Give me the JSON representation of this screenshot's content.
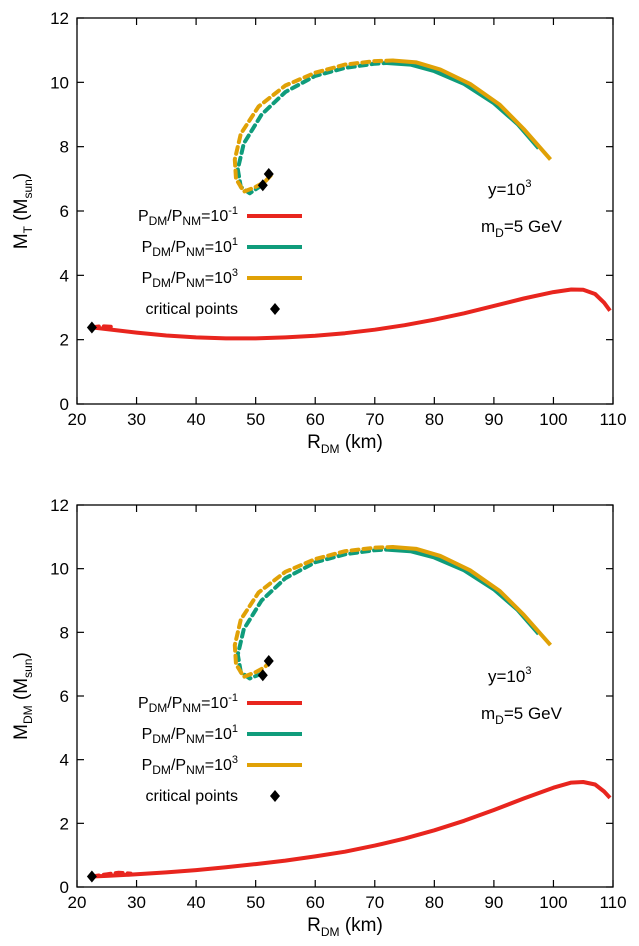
{
  "colors": {
    "red": "#e8251e",
    "green": "#0f9c7b",
    "orange": "#e0a106",
    "marker": "#000000"
  },
  "chart_data": [
    {
      "type": "line",
      "xlabel": {
        "main": "R",
        "sub": "DM",
        "rest": " (km)"
      },
      "ylabel": {
        "main": "M",
        "sub": "T",
        "rest": " (M",
        "sub2": "sun",
        "end": ")"
      },
      "xlim": [
        20,
        110
      ],
      "ylim": [
        0,
        12
      ],
      "xticks": [
        "20",
        "30",
        "40",
        "50",
        "60",
        "70",
        "80",
        "90",
        "100",
        "110"
      ],
      "yticks": [
        "0",
        "2",
        "4",
        "6",
        "8",
        "10",
        "12"
      ],
      "grid": false,
      "legend_position": "middle-left",
      "legend": [
        {
          "base": "P",
          "s1": "DM",
          "mid": "/P",
          "s2": "NM",
          "eq": "=10",
          "exp": "-1"
        },
        {
          "base": "P",
          "s1": "DM",
          "mid": "/P",
          "s2": "NM",
          "eq": "=10",
          "exp": "1"
        },
        {
          "base": "P",
          "s1": "DM",
          "mid": "/P",
          "s2": "NM",
          "eq": "=10",
          "exp": "3"
        },
        {
          "text": "critical points"
        }
      ],
      "annotations": [
        {
          "base": "y=10",
          "exp": "3"
        },
        {
          "base": "m",
          "sub": "D",
          "rest": "=5 GeV"
        }
      ],
      "series": [
        {
          "name_ref": 0,
          "color_key": "red",
          "stable": [
            [
              22.5,
              2.38
            ],
            [
              25,
              2.33
            ],
            [
              30,
              2.22
            ],
            [
              35,
              2.13
            ],
            [
              40,
              2.07
            ],
            [
              45,
              2.04
            ],
            [
              50,
              2.04
            ],
            [
              55,
              2.07
            ],
            [
              60,
              2.12
            ],
            [
              65,
              2.2
            ],
            [
              70,
              2.31
            ],
            [
              75,
              2.45
            ],
            [
              80,
              2.62
            ],
            [
              85,
              2.82
            ],
            [
              90,
              3.05
            ],
            [
              95,
              3.28
            ],
            [
              100,
              3.48
            ],
            [
              103,
              3.56
            ],
            [
              105,
              3.55
            ],
            [
              107,
              3.42
            ],
            [
              108.5,
              3.15
            ],
            [
              109.5,
              2.9
            ]
          ],
          "unstable": [
            [
              22.5,
              2.38
            ],
            [
              24,
              2.42
            ],
            [
              26,
              2.4
            ]
          ]
        },
        {
          "name_ref": 1,
          "color_key": "green",
          "stable": [
            [
              72,
              10.6
            ],
            [
              76,
              10.55
            ],
            [
              80,
              10.35
            ],
            [
              85,
              9.95
            ],
            [
              90,
              9.35
            ],
            [
              94,
              8.7
            ],
            [
              97.5,
              7.95
            ]
          ],
          "unstable": [
            [
              51,
              6.8
            ],
            [
              49,
              6.55
            ],
            [
              47.5,
              6.75
            ],
            [
              47,
              7.3
            ],
            [
              48,
              8.1
            ],
            [
              51,
              9.0
            ],
            [
              55,
              9.7
            ],
            [
              60,
              10.2
            ],
            [
              65,
              10.45
            ],
            [
              70,
              10.58
            ],
            [
              72,
              10.6
            ]
          ]
        },
        {
          "name_ref": 2,
          "color_key": "orange",
          "stable": [
            [
              73,
              10.68
            ],
            [
              77,
              10.62
            ],
            [
              81,
              10.4
            ],
            [
              86,
              9.95
            ],
            [
              91,
              9.3
            ],
            [
              95,
              8.55
            ],
            [
              99.5,
              7.6
            ]
          ],
          "unstable": [
            [
              52.5,
              7.1
            ],
            [
              51.5,
              6.9
            ],
            [
              50,
              6.75
            ],
            [
              48,
              6.6
            ],
            [
              46.7,
              7.0
            ],
            [
              46.5,
              7.6
            ],
            [
              47.5,
              8.4
            ],
            [
              50.5,
              9.25
            ],
            [
              55,
              9.9
            ],
            [
              60,
              10.3
            ],
            [
              65,
              10.55
            ],
            [
              70,
              10.66
            ],
            [
              73,
              10.68
            ]
          ]
        }
      ],
      "critical_points": [
        [
          22.5,
          2.38
        ],
        [
          51.2,
          6.8
        ],
        [
          52.2,
          7.15
        ]
      ]
    },
    {
      "type": "line",
      "xlabel": {
        "main": "R",
        "sub": "DM",
        "rest": " (km)"
      },
      "ylabel": {
        "main": "M",
        "sub": "DM",
        "rest": " (M",
        "sub2": "sun",
        "end": ")"
      },
      "xlim": [
        20,
        110
      ],
      "ylim": [
        0,
        12
      ],
      "xticks": [
        "20",
        "30",
        "40",
        "50",
        "60",
        "70",
        "80",
        "90",
        "100",
        "110"
      ],
      "yticks": [
        "0",
        "2",
        "4",
        "6",
        "8",
        "10",
        "12"
      ],
      "grid": false,
      "legend_position": "middle-left",
      "legend": [
        {
          "base": "P",
          "s1": "DM",
          "mid": "/P",
          "s2": "NM",
          "eq": "=10",
          "exp": "-1"
        },
        {
          "base": "P",
          "s1": "DM",
          "mid": "/P",
          "s2": "NM",
          "eq": "=10",
          "exp": "1"
        },
        {
          "base": "P",
          "s1": "DM",
          "mid": "/P",
          "s2": "NM",
          "eq": "=10",
          "exp": "3"
        },
        {
          "text": "critical points"
        }
      ],
      "annotations": [
        {
          "base": "y=10",
          "exp": "3"
        },
        {
          "base": "m",
          "sub": "D",
          "rest": "=5 GeV"
        }
      ],
      "series": [
        {
          "name_ref": 0,
          "color_key": "red",
          "stable": [
            [
              22.5,
              0.33
            ],
            [
              25,
              0.35
            ],
            [
              30,
              0.4
            ],
            [
              35,
              0.46
            ],
            [
              40,
              0.53
            ],
            [
              45,
              0.62
            ],
            [
              50,
              0.72
            ],
            [
              55,
              0.83
            ],
            [
              60,
              0.96
            ],
            [
              65,
              1.11
            ],
            [
              70,
              1.3
            ],
            [
              75,
              1.52
            ],
            [
              80,
              1.78
            ],
            [
              85,
              2.08
            ],
            [
              90,
              2.42
            ],
            [
              95,
              2.78
            ],
            [
              100,
              3.12
            ],
            [
              103,
              3.28
            ],
            [
              105,
              3.3
            ],
            [
              107,
              3.22
            ],
            [
              108.5,
              3.0
            ],
            [
              109.5,
              2.8
            ]
          ],
          "unstable": [
            [
              22.5,
              0.33
            ],
            [
              25,
              0.4
            ],
            [
              27,
              0.45
            ],
            [
              29,
              0.42
            ]
          ]
        },
        {
          "name_ref": 1,
          "color_key": "green",
          "stable": [
            [
              72,
              10.6
            ],
            [
              76,
              10.55
            ],
            [
              80,
              10.35
            ],
            [
              85,
              9.95
            ],
            [
              90,
              9.35
            ],
            [
              94,
              8.7
            ],
            [
              97.5,
              7.95
            ]
          ],
          "unstable": [
            [
              51,
              6.7
            ],
            [
              49,
              6.55
            ],
            [
              47.5,
              6.75
            ],
            [
              47,
              7.3
            ],
            [
              48,
              8.1
            ],
            [
              51,
              9.0
            ],
            [
              55,
              9.7
            ],
            [
              60,
              10.2
            ],
            [
              65,
              10.45
            ],
            [
              70,
              10.58
            ],
            [
              72,
              10.6
            ]
          ]
        },
        {
          "name_ref": 2,
          "color_key": "orange",
          "stable": [
            [
              73,
              10.68
            ],
            [
              77,
              10.62
            ],
            [
              81,
              10.4
            ],
            [
              86,
              9.95
            ],
            [
              91,
              9.3
            ],
            [
              95,
              8.55
            ],
            [
              99.5,
              7.6
            ]
          ],
          "unstable": [
            [
              52.5,
              7.1
            ],
            [
              51.5,
              6.9
            ],
            [
              50,
              6.75
            ],
            [
              48,
              6.6
            ],
            [
              46.7,
              7.0
            ],
            [
              46.5,
              7.6
            ],
            [
              47.5,
              8.4
            ],
            [
              50.5,
              9.25
            ],
            [
              55,
              9.9
            ],
            [
              60,
              10.3
            ],
            [
              65,
              10.55
            ],
            [
              70,
              10.66
            ],
            [
              73,
              10.68
            ]
          ]
        }
      ],
      "critical_points": [
        [
          22.5,
          0.33
        ],
        [
          51.2,
          6.65
        ],
        [
          52.2,
          7.1
        ]
      ]
    }
  ]
}
